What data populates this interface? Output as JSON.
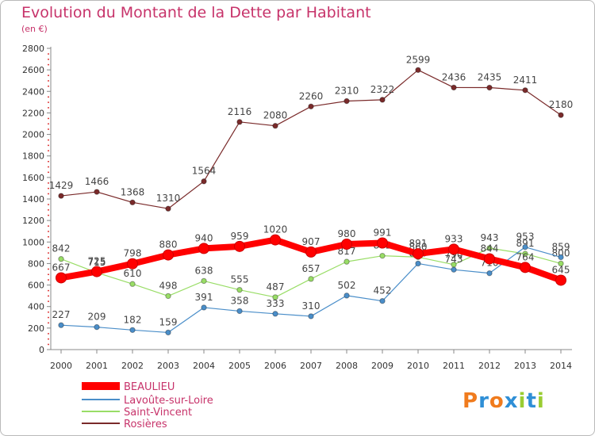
{
  "chart_data": {
    "type": "line",
    "title": "Evolution du Montant de la Dette par Habitant",
    "subtitle": "(en €)",
    "x": [
      "2000",
      "2001",
      "2002",
      "2003",
      "2004",
      "2005",
      "2006",
      "2007",
      "2008",
      "2009",
      "2010",
      "2011",
      "2012",
      "2013",
      "2014"
    ],
    "ylim": [
      0,
      2800
    ],
    "yticks": [
      0,
      200,
      400,
      600,
      800,
      1000,
      1200,
      1400,
      1600,
      1800,
      2000,
      2200,
      2400,
      2600,
      2800
    ],
    "grid": false,
    "legend_position": "bottom-left",
    "series": [
      {
        "name": "BEAULIEU",
        "color": "#ff0000",
        "values": [
          667,
          725,
          798,
          880,
          940,
          959,
          1020,
          907,
          980,
          991,
          891,
          933,
          844,
          764,
          645
        ]
      },
      {
        "name": "Lavoûte-sur-Loire",
        "color": "#4a8ec9",
        "values": [
          227,
          209,
          182,
          159,
          391,
          358,
          333,
          310,
          502,
          452,
          800,
          743,
          710,
          953,
          859
        ]
      },
      {
        "name": "Saint-Vincent",
        "color": "#99dd66",
        "values": [
          842,
          715,
          610,
          498,
          638,
          555,
          487,
          657,
          817,
          872,
          860,
          790,
          943,
          891,
          800
        ]
      },
      {
        "name": "Rosières",
        "color": "#7a2a2a",
        "values": [
          1429,
          1466,
          1368,
          1310,
          1564,
          2116,
          2080,
          2260,
          2310,
          2322,
          2599,
          2436,
          2435,
          2411,
          2180
        ]
      }
    ]
  },
  "logo": {
    "letters": [
      "P",
      "r",
      "o",
      "x",
      "i",
      "t",
      "i"
    ],
    "colors": [
      "#f07b1d",
      "#2f8fd6",
      "#f07b1d",
      "#2f8fd6",
      "#9acd32",
      "#2f8fd6",
      "#9acd32"
    ]
  }
}
